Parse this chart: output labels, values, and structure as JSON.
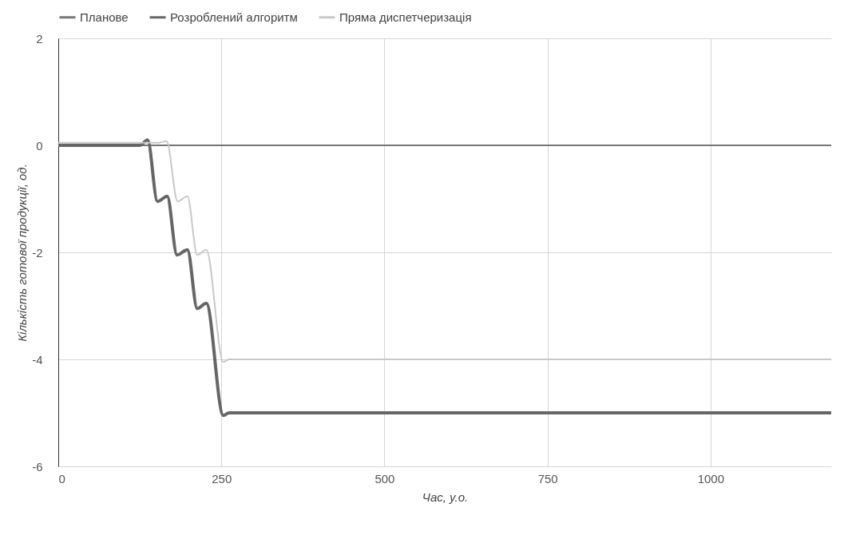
{
  "chart_data": {
    "type": "line",
    "xlabel": "Час, у.о.",
    "ylabel": "Кількість готової продукції, од.",
    "xlim": [
      0,
      1185
    ],
    "ylim": [
      -6,
      2
    ],
    "xticks": [
      0,
      250,
      500,
      750,
      1000
    ],
    "yticks": [
      -6,
      -4,
      -2,
      0,
      2
    ],
    "grid": true,
    "legend": "top left",
    "line_style": "solid",
    "marker": "none",
    "series": [
      {
        "name": "Планове",
        "color": "#757575",
        "x": [
          0,
          1185
        ],
        "values": [
          0,
          0
        ]
      },
      {
        "name": "Розроблений алгоритм",
        "color": "#666666",
        "x": [
          0,
          125,
          137,
          152,
          167,
          182,
          198,
          213,
          227,
          253,
          262,
          1185
        ],
        "values": [
          0,
          0,
          0.1,
          -1.05,
          -0.95,
          -2.05,
          -1.95,
          -3.05,
          -2.95,
          -5.05,
          -5,
          -5
        ]
      },
      {
        "name": "Пряма диспетчеризація",
        "color": "#c8c8c8",
        "x": [
          0,
          155,
          166,
          183,
          198,
          213,
          227,
          253,
          262,
          1185
        ],
        "values": [
          0.05,
          0.05,
          0.08,
          -1.05,
          -0.95,
          -2.05,
          -1.95,
          -4.05,
          -4,
          -4
        ]
      }
    ]
  }
}
